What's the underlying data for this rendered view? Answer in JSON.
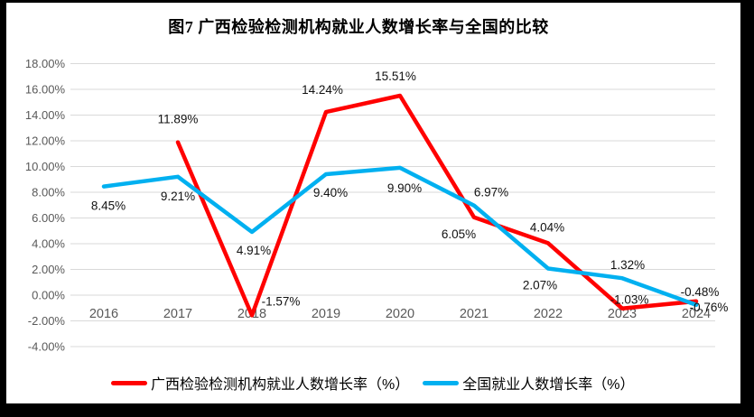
{
  "chart_data": {
    "type": "line",
    "title": "图7 广西检验检测机构就业人数增长率与全国的比较",
    "categories": [
      "2016",
      "2017",
      "2018",
      "2019",
      "2020",
      "2021",
      "2022",
      "2023",
      "2024"
    ],
    "series": [
      {
        "name": "广西检验检测机构就业人数增长率（%）",
        "color": "#FF0000",
        "start_index": 1,
        "values": [
          11.89,
          -1.57,
          14.24,
          15.51,
          6.05,
          4.04,
          -1.03,
          -0.48
        ],
        "labels": [
          "11.89%",
          "-1.57%",
          "14.24%",
          "15.51%",
          "6.05%",
          "4.04%",
          "-1.03%",
          "-0.48%"
        ]
      },
      {
        "name": "全国就业人数增长率（%）",
        "color": "#00B0F0",
        "start_index": 0,
        "values": [
          8.45,
          9.21,
          4.91,
          9.4,
          9.9,
          6.97,
          2.07,
          1.32,
          -0.76
        ],
        "labels": [
          "8.45%",
          "9.21%",
          "4.91%",
          "9.40%",
          "9.90%",
          "6.97%",
          "2.07%",
          "1.32%",
          "-0.76%"
        ]
      }
    ],
    "y_axis": {
      "tick_labels": [
        "18.00%",
        "16.00%",
        "14.00%",
        "12.00%",
        "10.00%",
        "8.00%",
        "6.00%",
        "4.00%",
        "2.00%",
        "0.00%",
        "-2.00%",
        "-4.00%"
      ],
      "tick_values": [
        18,
        16,
        14,
        12,
        10,
        8,
        6,
        4,
        2,
        0,
        -2,
        -4
      ],
      "min": -4,
      "max": 18
    },
    "grid": true,
    "legend_position": "bottom",
    "colors": {
      "grid": "#D9D9D9",
      "axis_text": "#595959",
      "data_label": "#111111",
      "title": "#000000",
      "background": "#FFFFFF",
      "frame": "#000000"
    }
  }
}
